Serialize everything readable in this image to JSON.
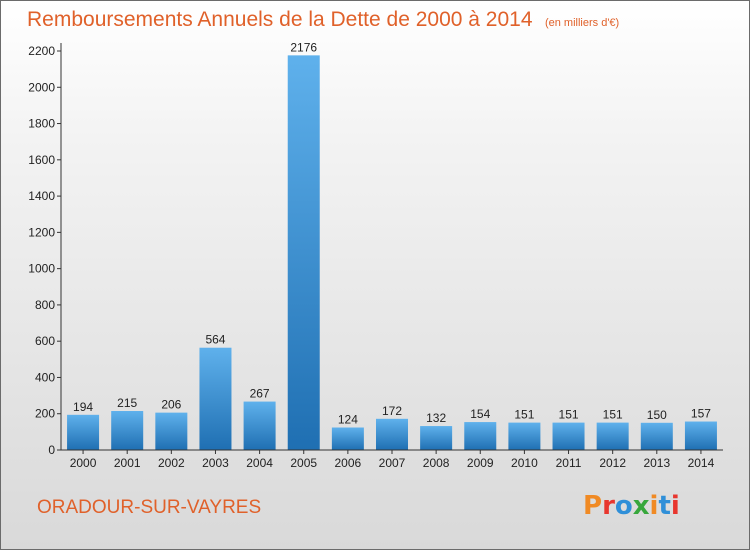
{
  "header": {
    "title": "Remboursements Annuels de la Dette de 2000 à 2014",
    "unit_note": "(en milliers d'€)"
  },
  "footer": {
    "commune": "ORADOUR-SUR-VAYRES",
    "brand": "Proxiti"
  },
  "colors": {
    "title": "#e0612a",
    "bar_light": "#5fb1ec",
    "bar_dark": "#1f6fb2",
    "axis": "#333333",
    "grid": "#bbbbbb",
    "brand_letters": [
      "#f08a24",
      "#e8362e",
      "#2f8fd8",
      "#37a73c",
      "#f08a24",
      "#2f8fd8",
      "#e8362e"
    ]
  },
  "chart_data": {
    "type": "bar",
    "title": "Remboursements Annuels de la Dette de 2000 à 2014",
    "subtitle": "(en milliers d'€)",
    "xlabel": "",
    "ylabel": "",
    "categories": [
      "2000",
      "2001",
      "2002",
      "2003",
      "2004",
      "2005",
      "2006",
      "2007",
      "2008",
      "2009",
      "2010",
      "2011",
      "2012",
      "2013",
      "2014"
    ],
    "values": [
      194,
      215,
      206,
      564,
      267,
      2176,
      124,
      172,
      132,
      154,
      151,
      151,
      151,
      150,
      157
    ],
    "ylim": [
      0,
      2200
    ],
    "yticks": [
      0,
      200,
      400,
      600,
      800,
      1000,
      1200,
      1400,
      1600,
      1800,
      2000,
      2200
    ],
    "grid": false,
    "legend": "none"
  }
}
